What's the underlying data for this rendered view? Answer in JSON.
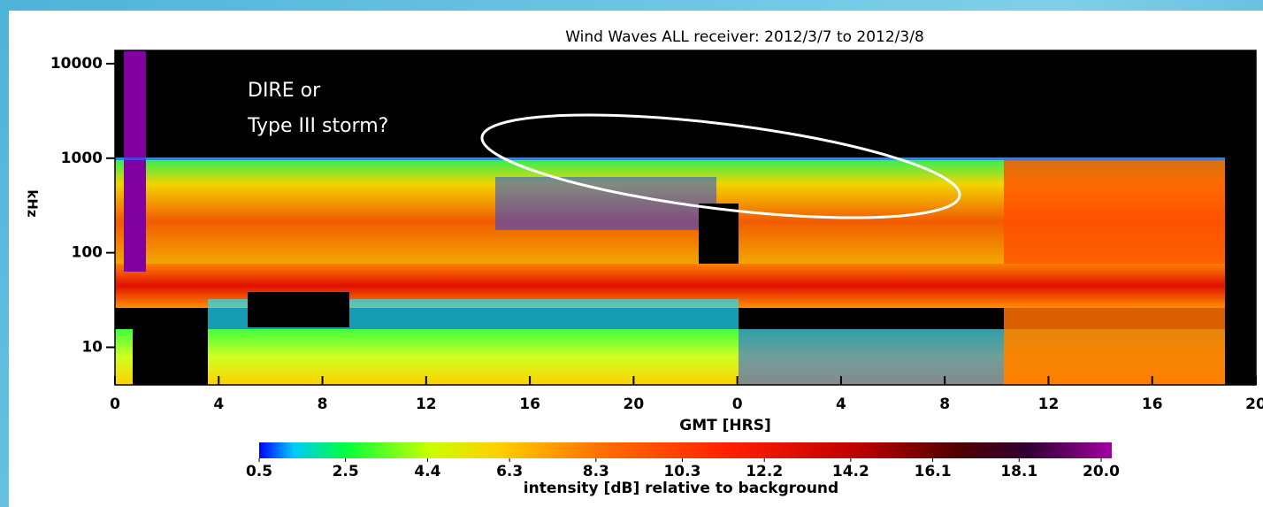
{
  "chart_data": {
    "type": "spectrogram",
    "title": "Wind Waves ALL receiver: 2012/3/7 to 2012/3/8",
    "x_label": "GMT [HRS]",
    "y_label": "kHz",
    "annotation": [
      "DIRE or",
      "Type III storm?"
    ],
    "xlim": [
      0,
      44
    ],
    "xticks": [
      0,
      4,
      8,
      12,
      16,
      20,
      {
        "value": 24,
        "label": "0"
      },
      {
        "value": 28,
        "label": "4"
      },
      {
        "value": 32,
        "label": "8"
      },
      {
        "value": 36,
        "label": "12"
      },
      {
        "value": 40,
        "label": "16"
      },
      {
        "value": 44,
        "label": "20"
      }
    ],
    "ylim": [
      4,
      13800
    ],
    "log_y": true,
    "yticks": [
      10,
      100,
      1000,
      10000
    ],
    "colorbar": {
      "label": "intensity [dB] relative to background",
      "lim": [
        0.5,
        20
      ],
      "ticks": [
        0.5,
        2.5,
        4.4,
        6.3,
        8.3,
        10.3,
        12.2,
        14.2,
        16.1,
        18.1,
        {
          "value": 20,
          "label": "20.0"
        }
      ]
    }
  }
}
